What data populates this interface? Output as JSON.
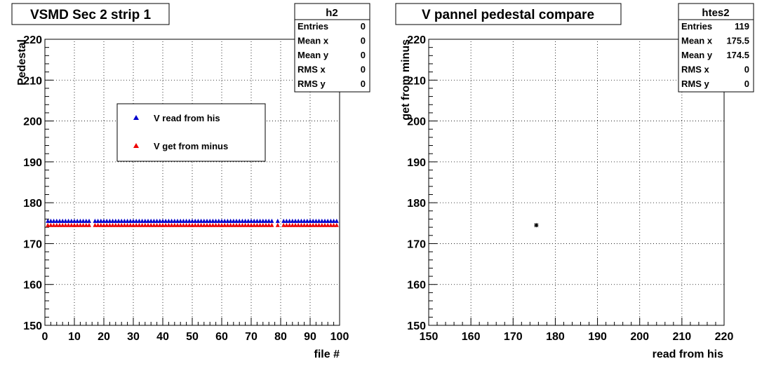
{
  "chart_data": [
    {
      "type": "scatter",
      "title": "VSMD Sec 2 strip 1",
      "xlabel": "file #",
      "ylabel": "Pedestal",
      "xlim": [
        0,
        100
      ],
      "ylim": [
        150,
        220
      ],
      "xticks": [
        "0",
        "10",
        "20",
        "30",
        "40",
        "50",
        "60",
        "70",
        "80",
        "90",
        "100"
      ],
      "yticks": [
        "150",
        "160",
        "170",
        "180",
        "190",
        "200",
        "210",
        "220"
      ],
      "grid": true,
      "legend_position": "upper-center",
      "stats": {
        "name": "h2",
        "rows": [
          {
            "label": "Entries",
            "value": "0"
          },
          {
            "label": "Mean x",
            "value": "0"
          },
          {
            "label": "Mean y",
            "value": "0"
          },
          {
            "label": "RMS x",
            "value": "0"
          },
          {
            "label": "RMS y",
            "value": "0"
          }
        ]
      },
      "series": [
        {
          "name": "V read from his",
          "color": "#0000cc",
          "marker": "triangle",
          "y_value": 175.5,
          "x_ranges": [
            [
              1,
              15
            ],
            [
              17,
              77
            ],
            [
              79,
              79
            ],
            [
              81,
              99
            ]
          ]
        },
        {
          "name": "V get from minus",
          "color": "#ee0000",
          "marker": "triangle",
          "y_value": 174.5,
          "x_ranges": [
            [
              1,
              15
            ],
            [
              17,
              77
            ],
            [
              79,
              79
            ],
            [
              81,
              99
            ]
          ]
        }
      ]
    },
    {
      "type": "scatter",
      "title": "V pannel pedestal compare",
      "xlabel": "read from his",
      "ylabel": "get from minus",
      "xlim": [
        150,
        220
      ],
      "ylim": [
        150,
        220
      ],
      "xticks": [
        "150",
        "160",
        "170",
        "180",
        "190",
        "200",
        "210",
        "220"
      ],
      "yticks": [
        "150",
        "160",
        "170",
        "180",
        "190",
        "200",
        "210",
        "220"
      ],
      "grid": true,
      "stats": {
        "name": "htes2",
        "rows": [
          {
            "label": "Entries",
            "value": "119"
          },
          {
            "label": "Mean x",
            "value": "175.5"
          },
          {
            "label": "Mean y",
            "value": "174.5"
          },
          {
            "label": "RMS x",
            "value": "0"
          },
          {
            "label": "RMS y",
            "value": "0"
          }
        ]
      },
      "series": [
        {
          "color": "#000000",
          "marker": "star",
          "points": [
            [
              175.5,
              174.5
            ]
          ]
        }
      ]
    }
  ]
}
